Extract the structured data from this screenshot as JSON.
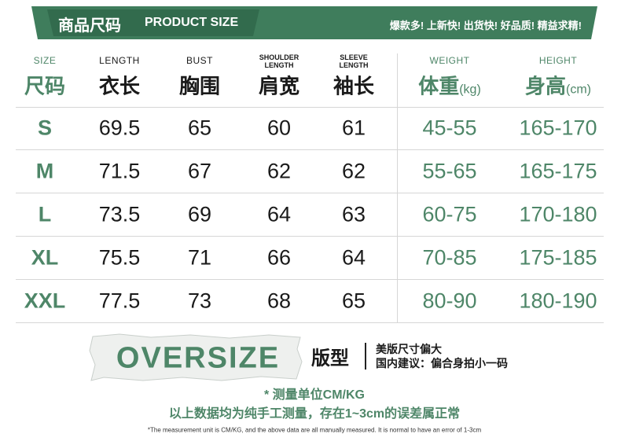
{
  "header": {
    "title_zh": "商品尺码",
    "title_en": "PRODUCT SIZE",
    "slogan": "爆款多! 上新快! 出货快! 好品质! 精益求精!"
  },
  "table": {
    "columns": [
      {
        "en": [
          "SIZE"
        ],
        "zh": "尺码"
      },
      {
        "en": [
          "LENGTH"
        ],
        "zh": "衣长"
      },
      {
        "en": [
          "BUST"
        ],
        "zh": "胸围"
      },
      {
        "en": [
          "SHOULDER",
          "LENGTH"
        ],
        "zh": "肩宽"
      },
      {
        "en": [
          "SLEEVE",
          "LENGTH"
        ],
        "zh": "袖长"
      },
      {
        "en": [
          "WEIGHT"
        ],
        "zh": "体重",
        "unit": "(kg)"
      },
      {
        "en": [
          "HEIGHT"
        ],
        "zh": "身高",
        "unit": "(cm)"
      }
    ],
    "rows": [
      [
        "S",
        "69.5",
        "65",
        "60",
        "61",
        "45-55",
        "165-170"
      ],
      [
        "M",
        "71.5",
        "67",
        "62",
        "62",
        "55-65",
        "165-175"
      ],
      [
        "L",
        "73.5",
        "69",
        "64",
        "63",
        "60-75",
        "170-180"
      ],
      [
        "XL",
        "75.5",
        "71",
        "66",
        "64",
        "70-85",
        "175-185"
      ],
      [
        "XXL",
        "77.5",
        "73",
        "68",
        "65",
        "80-90",
        "180-190"
      ]
    ]
  },
  "fit": {
    "badge": "OVERSIZE",
    "label": "版型",
    "notes": [
      "美版尺寸偏大",
      "国内建议：偏合身拍小一码"
    ]
  },
  "footer": {
    "note": "* 测量单位CM/KG",
    "disclaimer": "以上数据均为纯手工测量，存在1~3cm的误差属正常",
    "english": "*The measurement unit is CM/KG, and the above data are all manually measured. It is normal to have an error of 1-3cm"
  }
}
